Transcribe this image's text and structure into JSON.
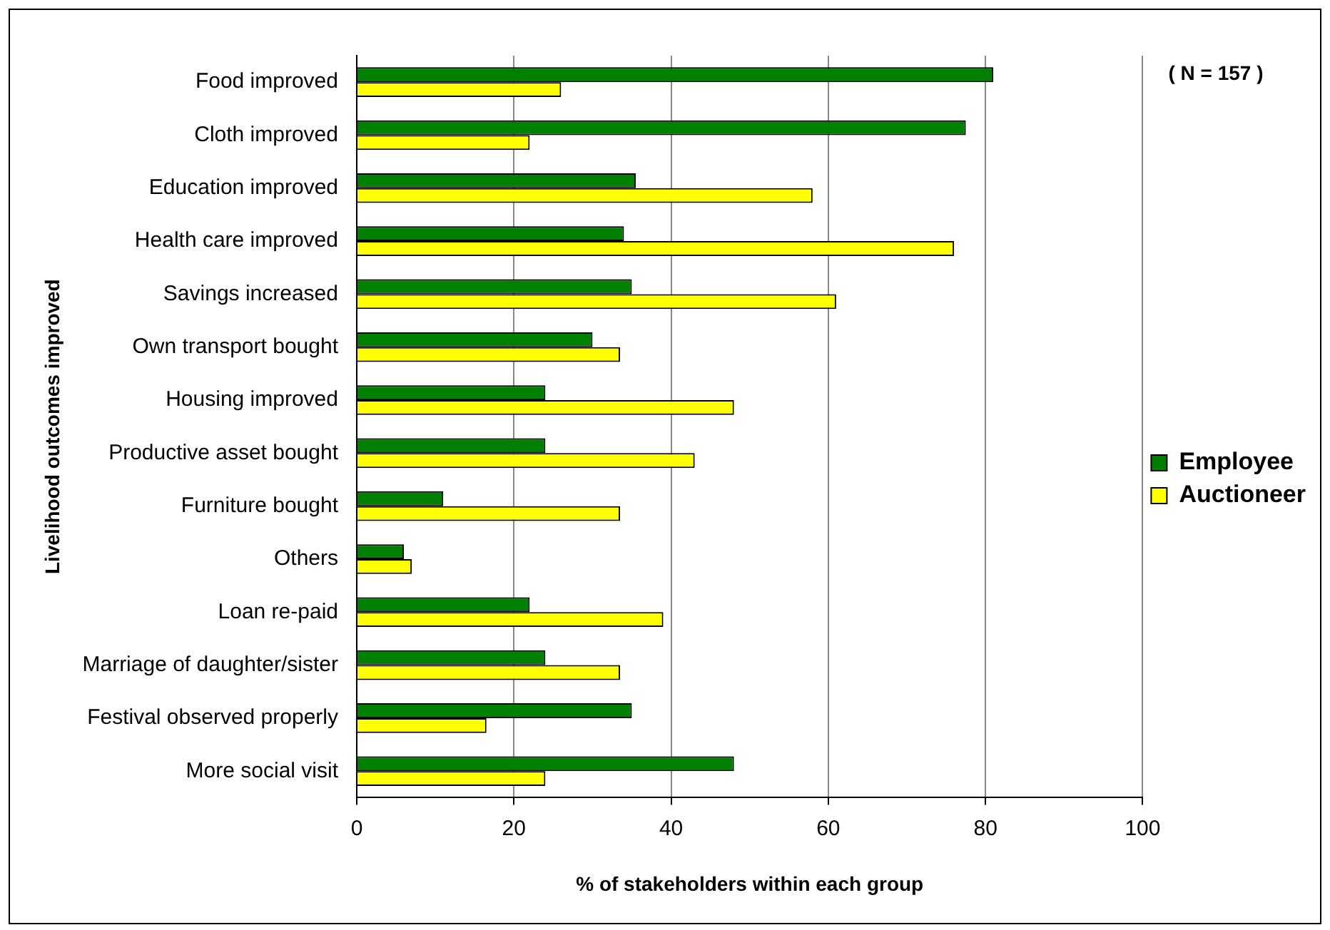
{
  "chart_data": {
    "type": "bar",
    "orientation": "horizontal",
    "xlabel": "% of stakeholders within each group",
    "ylabel": "Livelihood outcomes improved",
    "categories": [
      "Food improved",
      "Cloth improved",
      "Education improved",
      "Health care improved",
      "Savings increased",
      "Own transport bought",
      "Housing improved",
      "Productive asset bought",
      "Furniture bought",
      "Others",
      "Loan re-paid",
      "Marriage of daughter/sister",
      "Festival observed properly",
      "More social visit"
    ],
    "series": [
      {
        "name": "Employee",
        "color": "#008000",
        "values": [
          81,
          77.5,
          35.5,
          34,
          35,
          30,
          24,
          24,
          11,
          6,
          22,
          24,
          35,
          48
        ]
      },
      {
        "name": "Auctioneer",
        "color": "#ffff00",
        "values": [
          26,
          22,
          58,
          76,
          61,
          33.5,
          48,
          43,
          33.5,
          7,
          39,
          33.5,
          16.5,
          24
        ]
      }
    ],
    "xlim": [
      0,
      100
    ],
    "xticks": [
      0,
      20,
      40,
      60,
      80,
      100
    ],
    "grid": "x",
    "legend": "right",
    "annotations": [
      "( N = 157 )"
    ]
  }
}
